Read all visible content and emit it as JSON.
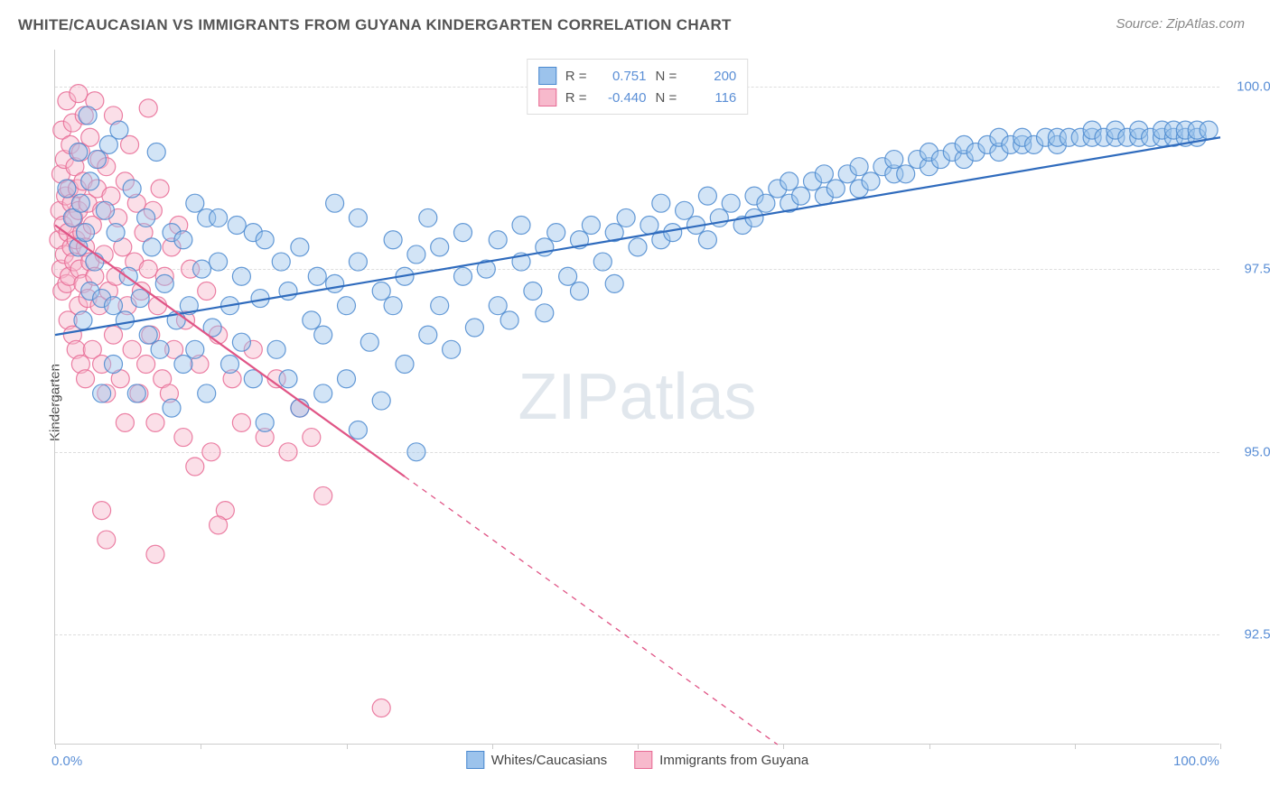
{
  "title": "WHITE/CAUCASIAN VS IMMIGRANTS FROM GUYANA KINDERGARTEN CORRELATION CHART",
  "source": "Source: ZipAtlas.com",
  "ylabel": "Kindergarten",
  "watermark_a": "ZIP",
  "watermark_b": "atlas",
  "chart": {
    "type": "scatter",
    "background_color": "#ffffff",
    "grid_color": "#dddddd",
    "axis_color": "#cccccc",
    "tick_label_color": "#5b8fd6",
    "xlim": [
      0,
      100
    ],
    "ylim": [
      91,
      100.5
    ],
    "yticks": [
      {
        "value": 92.5,
        "label": "92.5%"
      },
      {
        "value": 95.0,
        "label": "95.0%"
      },
      {
        "value": 97.5,
        "label": "97.5%"
      },
      {
        "value": 100.0,
        "label": "100.0%"
      }
    ],
    "xticks": [
      {
        "value": 0,
        "label": "0.0%"
      },
      {
        "value": 100,
        "label": "100.0%"
      }
    ],
    "xtick_marks": [
      0,
      12.5,
      25,
      37.5,
      50,
      62.5,
      75,
      87.5,
      100
    ],
    "marker_radius": 10,
    "marker_opacity": 0.45,
    "marker_stroke_opacity": 0.85,
    "line_width": 2.2
  },
  "series": [
    {
      "id": "blue",
      "label": "Whites/Caucasians",
      "color_fill": "#9cc3ec",
      "color_stroke": "#4a88cf",
      "line_color": "#2f6bbd",
      "r_value": "0.751",
      "n_value": "200",
      "trend": {
        "x1": 0,
        "y1": 96.6,
        "x2": 100,
        "y2": 99.3,
        "dash_from_x": null
      },
      "points": [
        [
          1,
          98.6
        ],
        [
          1.5,
          98.2
        ],
        [
          2,
          97.8
        ],
        [
          2,
          99.1
        ],
        [
          2.2,
          98.4
        ],
        [
          2.4,
          96.8
        ],
        [
          2.6,
          98.0
        ],
        [
          2.8,
          99.6
        ],
        [
          3,
          98.7
        ],
        [
          3,
          97.2
        ],
        [
          3.4,
          97.6
        ],
        [
          3.6,
          99.0
        ],
        [
          4,
          97.1
        ],
        [
          4,
          95.8
        ],
        [
          4.3,
          98.3
        ],
        [
          4.6,
          99.2
        ],
        [
          5,
          97.0
        ],
        [
          5,
          96.2
        ],
        [
          5.2,
          98.0
        ],
        [
          5.5,
          99.4
        ],
        [
          6,
          96.8
        ],
        [
          6.3,
          97.4
        ],
        [
          6.6,
          98.6
        ],
        [
          7,
          95.8
        ],
        [
          7.3,
          97.1
        ],
        [
          7.8,
          98.2
        ],
        [
          8,
          96.6
        ],
        [
          8.3,
          97.8
        ],
        [
          8.7,
          99.1
        ],
        [
          9,
          96.4
        ],
        [
          9.4,
          97.3
        ],
        [
          10,
          98.0
        ],
        [
          10,
          95.6
        ],
        [
          10.4,
          96.8
        ],
        [
          11,
          97.9
        ],
        [
          11,
          96.2
        ],
        [
          11.5,
          97.0
        ],
        [
          12,
          98.4
        ],
        [
          12,
          96.4
        ],
        [
          12.6,
          97.5
        ],
        [
          13,
          98.2
        ],
        [
          13,
          95.8
        ],
        [
          13.5,
          96.7
        ],
        [
          14,
          97.6
        ],
        [
          14,
          98.2
        ],
        [
          15,
          96.2
        ],
        [
          15,
          97.0
        ],
        [
          15.6,
          98.1
        ],
        [
          16,
          96.5
        ],
        [
          16,
          97.4
        ],
        [
          17,
          98.0
        ],
        [
          17,
          96.0
        ],
        [
          17.6,
          97.1
        ],
        [
          18,
          97.9
        ],
        [
          18,
          95.4
        ],
        [
          19,
          96.4
        ],
        [
          19.4,
          97.6
        ],
        [
          20,
          96.0
        ],
        [
          20,
          97.2
        ],
        [
          21,
          97.8
        ],
        [
          21,
          95.6
        ],
        [
          22,
          96.8
        ],
        [
          22.5,
          97.4
        ],
        [
          23,
          95.8
        ],
        [
          23,
          96.6
        ],
        [
          24,
          97.3
        ],
        [
          24,
          98.4
        ],
        [
          25,
          96.0
        ],
        [
          25,
          97.0
        ],
        [
          26,
          97.6
        ],
        [
          26,
          95.3
        ],
        [
          26,
          98.2
        ],
        [
          27,
          96.5
        ],
        [
          28,
          97.2
        ],
        [
          28,
          95.7
        ],
        [
          29,
          97.0
        ],
        [
          29,
          97.9
        ],
        [
          30,
          96.2
        ],
        [
          30,
          97.4
        ],
        [
          31,
          97.7
        ],
        [
          31,
          95.0
        ],
        [
          32,
          96.6
        ],
        [
          32,
          98.2
        ],
        [
          33,
          97.0
        ],
        [
          33,
          97.8
        ],
        [
          34,
          96.4
        ],
        [
          35,
          97.4
        ],
        [
          35,
          98.0
        ],
        [
          36,
          96.7
        ],
        [
          37,
          97.5
        ],
        [
          38,
          97.0
        ],
        [
          38,
          97.9
        ],
        [
          39,
          96.8
        ],
        [
          40,
          97.6
        ],
        [
          40,
          98.1
        ],
        [
          41,
          97.2
        ],
        [
          42,
          97.8
        ],
        [
          42,
          96.9
        ],
        [
          43,
          98.0
        ],
        [
          44,
          97.4
        ],
        [
          45,
          97.9
        ],
        [
          45,
          97.2
        ],
        [
          46,
          98.1
        ],
        [
          47,
          97.6
        ],
        [
          48,
          98.0
        ],
        [
          48,
          97.3
        ],
        [
          49,
          98.2
        ],
        [
          50,
          97.8
        ],
        [
          51,
          98.1
        ],
        [
          52,
          97.9
        ],
        [
          52,
          98.4
        ],
        [
          53,
          98.0
        ],
        [
          54,
          98.3
        ],
        [
          55,
          98.1
        ],
        [
          56,
          97.9
        ],
        [
          56,
          98.5
        ],
        [
          57,
          98.2
        ],
        [
          58,
          98.4
        ],
        [
          59,
          98.1
        ],
        [
          60,
          98.5
        ],
        [
          60,
          98.2
        ],
        [
          61,
          98.4
        ],
        [
          62,
          98.6
        ],
        [
          63,
          98.4
        ],
        [
          63,
          98.7
        ],
        [
          64,
          98.5
        ],
        [
          65,
          98.7
        ],
        [
          66,
          98.5
        ],
        [
          66,
          98.8
        ],
        [
          67,
          98.6
        ],
        [
          68,
          98.8
        ],
        [
          69,
          98.6
        ],
        [
          69,
          98.9
        ],
        [
          70,
          98.7
        ],
        [
          71,
          98.9
        ],
        [
          72,
          98.8
        ],
        [
          72,
          99.0
        ],
        [
          73,
          98.8
        ],
        [
          74,
          99.0
        ],
        [
          75,
          98.9
        ],
        [
          75,
          99.1
        ],
        [
          76,
          99.0
        ],
        [
          77,
          99.1
        ],
        [
          78,
          99.0
        ],
        [
          78,
          99.2
        ],
        [
          79,
          99.1
        ],
        [
          80,
          99.2
        ],
        [
          81,
          99.1
        ],
        [
          81,
          99.3
        ],
        [
          82,
          99.2
        ],
        [
          83,
          99.2
        ],
        [
          83,
          99.3
        ],
        [
          84,
          99.2
        ],
        [
          85,
          99.3
        ],
        [
          86,
          99.2
        ],
        [
          86,
          99.3
        ],
        [
          87,
          99.3
        ],
        [
          88,
          99.3
        ],
        [
          89,
          99.3
        ],
        [
          89,
          99.4
        ],
        [
          90,
          99.3
        ],
        [
          91,
          99.3
        ],
        [
          91,
          99.4
        ],
        [
          92,
          99.3
        ],
        [
          93,
          99.3
        ],
        [
          93,
          99.4
        ],
        [
          94,
          99.3
        ],
        [
          95,
          99.3
        ],
        [
          95,
          99.4
        ],
        [
          96,
          99.3
        ],
        [
          96,
          99.4
        ],
        [
          97,
          99.3
        ],
        [
          97,
          99.4
        ],
        [
          98,
          99.3
        ],
        [
          98,
          99.4
        ],
        [
          99,
          99.4
        ]
      ]
    },
    {
      "id": "pink",
      "label": "Immigrants from Guyana",
      "color_fill": "#f7b9cc",
      "color_stroke": "#e76a94",
      "line_color": "#e05586",
      "r_value": "-0.440",
      "n_value": "116",
      "trend": {
        "x1": 0,
        "y1": 98.1,
        "x2": 62,
        "y2": 91.0,
        "dash_from_x": 30
      },
      "points": [
        [
          0.3,
          97.9
        ],
        [
          0.4,
          98.3
        ],
        [
          0.5,
          97.5
        ],
        [
          0.5,
          98.8
        ],
        [
          0.6,
          97.2
        ],
        [
          0.6,
          99.4
        ],
        [
          0.7,
          98.1
        ],
        [
          0.8,
          97.7
        ],
        [
          0.8,
          99.0
        ],
        [
          0.9,
          98.5
        ],
        [
          1.0,
          97.3
        ],
        [
          1.0,
          99.8
        ],
        [
          1.1,
          98.0
        ],
        [
          1.1,
          96.8
        ],
        [
          1.2,
          98.6
        ],
        [
          1.2,
          97.4
        ],
        [
          1.3,
          99.2
        ],
        [
          1.4,
          97.8
        ],
        [
          1.4,
          98.4
        ],
        [
          1.5,
          96.6
        ],
        [
          1.5,
          99.5
        ],
        [
          1.6,
          97.6
        ],
        [
          1.6,
          98.2
        ],
        [
          1.7,
          98.9
        ],
        [
          1.8,
          96.4
        ],
        [
          1.8,
          97.9
        ],
        [
          1.9,
          98.6
        ],
        [
          2.0,
          97.0
        ],
        [
          2.0,
          99.9
        ],
        [
          2.0,
          98.3
        ],
        [
          2.1,
          97.5
        ],
        [
          2.2,
          99.1
        ],
        [
          2.2,
          96.2
        ],
        [
          2.3,
          98.0
        ],
        [
          2.4,
          97.3
        ],
        [
          2.4,
          98.7
        ],
        [
          2.5,
          99.6
        ],
        [
          2.6,
          97.8
        ],
        [
          2.6,
          96.0
        ],
        [
          2.8,
          98.4
        ],
        [
          2.8,
          97.1
        ],
        [
          3.0,
          99.3
        ],
        [
          3.0,
          97.6
        ],
        [
          3.2,
          98.1
        ],
        [
          3.2,
          96.4
        ],
        [
          3.4,
          97.4
        ],
        [
          3.4,
          99.8
        ],
        [
          3.6,
          98.6
        ],
        [
          3.8,
          97.0
        ],
        [
          3.8,
          99.0
        ],
        [
          4.0,
          98.3
        ],
        [
          4.0,
          96.2
        ],
        [
          4.2,
          97.7
        ],
        [
          4.4,
          98.9
        ],
        [
          4.4,
          95.8
        ],
        [
          4.6,
          97.2
        ],
        [
          4.8,
          98.5
        ],
        [
          5.0,
          96.6
        ],
        [
          5.0,
          99.6
        ],
        [
          5.2,
          97.4
        ],
        [
          5.4,
          98.2
        ],
        [
          5.6,
          96.0
        ],
        [
          5.8,
          97.8
        ],
        [
          6.0,
          98.7
        ],
        [
          6.0,
          95.4
        ],
        [
          6.2,
          97.0
        ],
        [
          6.4,
          99.2
        ],
        [
          6.6,
          96.4
        ],
        [
          6.8,
          97.6
        ],
        [
          7.0,
          98.4
        ],
        [
          7.2,
          95.8
        ],
        [
          7.4,
          97.2
        ],
        [
          7.6,
          98.0
        ],
        [
          7.8,
          96.2
        ],
        [
          8.0,
          97.5
        ],
        [
          8.0,
          99.7
        ],
        [
          8.2,
          96.6
        ],
        [
          8.4,
          98.3
        ],
        [
          8.6,
          95.4
        ],
        [
          8.8,
          97.0
        ],
        [
          9.0,
          98.6
        ],
        [
          9.2,
          96.0
        ],
        [
          9.4,
          97.4
        ],
        [
          9.8,
          95.8
        ],
        [
          10.0,
          97.8
        ],
        [
          10.2,
          96.4
        ],
        [
          10.6,
          98.1
        ],
        [
          11.0,
          95.2
        ],
        [
          11.2,
          96.8
        ],
        [
          11.6,
          97.5
        ],
        [
          12.0,
          94.8
        ],
        [
          12.4,
          96.2
        ],
        [
          13.0,
          97.2
        ],
        [
          13.4,
          95.0
        ],
        [
          14.0,
          96.6
        ],
        [
          14.6,
          94.2
        ],
        [
          15.2,
          96.0
        ],
        [
          16.0,
          95.4
        ],
        [
          17.0,
          96.4
        ],
        [
          18.0,
          95.2
        ],
        [
          19.0,
          96.0
        ],
        [
          20.0,
          95.0
        ],
        [
          21.0,
          95.6
        ],
        [
          4.0,
          94.2
        ],
        [
          4.4,
          93.8
        ],
        [
          8.6,
          93.6
        ],
        [
          22.0,
          95.2
        ],
        [
          23.0,
          94.4
        ],
        [
          14.0,
          94.0
        ],
        [
          28.0,
          91.5
        ]
      ]
    }
  ],
  "legend_top": {
    "r_label": "R =",
    "n_label": "N ="
  }
}
